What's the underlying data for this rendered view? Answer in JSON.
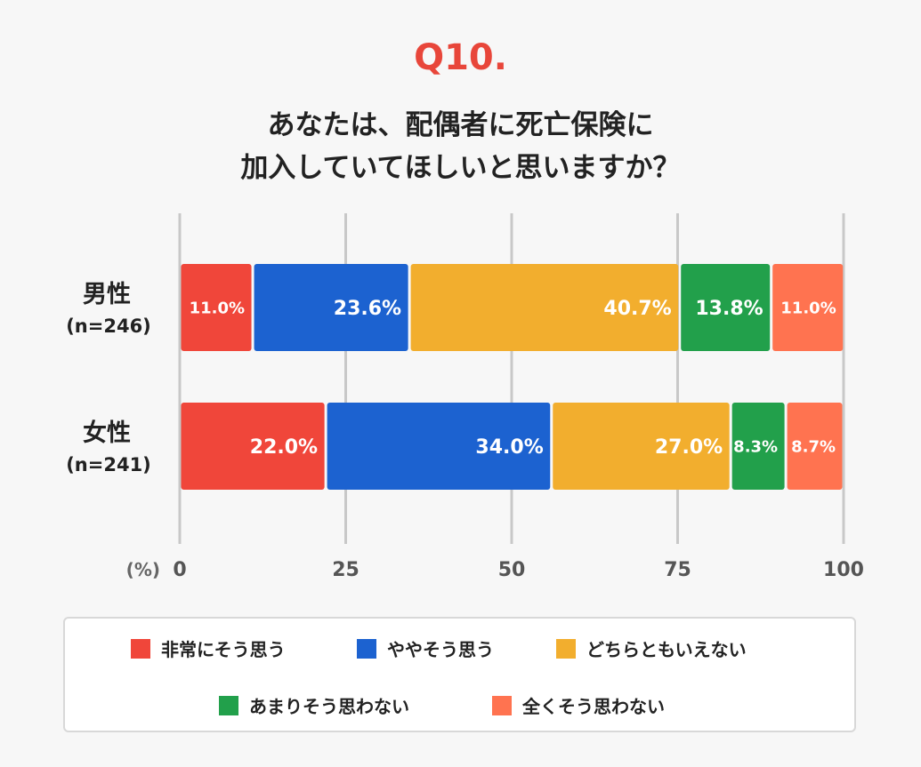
{
  "question": {
    "number": "Q10.",
    "line1": "あなたは、配偶者に死亡保険に",
    "line2": "加入していてほしいと思いますか？"
  },
  "chart_data": {
    "type": "bar",
    "orientation": "horizontal",
    "stacked": true,
    "unit_label": "(%)",
    "xlim": [
      0,
      100
    ],
    "xticks": [
      0,
      25,
      50,
      75,
      100
    ],
    "grid": true,
    "legend_position": "bottom",
    "categories": [
      {
        "name": "男性",
        "sub": "(n=246)"
      },
      {
        "name": "女性",
        "sub": "(n=241)"
      }
    ],
    "series": [
      {
        "name": "非常にそう思う",
        "color": "#f0463a",
        "values": [
          11.0,
          22.0
        ],
        "labels": [
          "11.0%",
          "22.0%"
        ]
      },
      {
        "name": "ややそう思う",
        "color": "#1c62d0",
        "values": [
          23.6,
          34.0
        ],
        "labels": [
          "23.6%",
          "34.0%"
        ]
      },
      {
        "name": "どちらともいえない",
        "color": "#f2ae2e",
        "values": [
          40.7,
          27.0
        ],
        "labels": [
          "40.7%",
          "27.0%"
        ]
      },
      {
        "name": "あまりそう思わない",
        "color": "#22a04b",
        "values": [
          13.8,
          8.3
        ],
        "labels": [
          "13.8%",
          "8.3%"
        ]
      },
      {
        "name": "全くそう思わない",
        "color": "#ff7350",
        "values": [
          11.0,
          8.7
        ],
        "labels": [
          "11.0%",
          "8.7%"
        ]
      }
    ]
  }
}
